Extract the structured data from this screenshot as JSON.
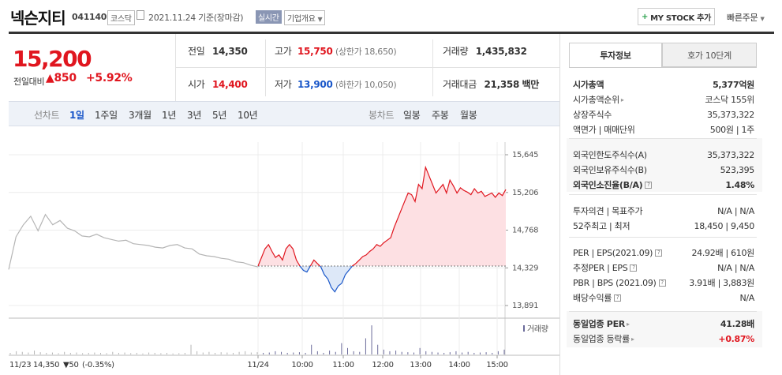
{
  "header": {
    "name": "넥슨지티",
    "code": "041140",
    "market": "코스닥",
    "date_basis": "2021.11.24 기준(장마감)",
    "live_label": "실시간",
    "company_overview": "기업개요",
    "mystock_label": "MY STOCK 추가",
    "quick_order": "빠른주문"
  },
  "quote": {
    "price": "15,200",
    "change_label": "전일대비",
    "change": "850",
    "change_pct": "+5.92%",
    "prev_label": "전일",
    "prev": "14,350",
    "high_label": "고가",
    "high": "15,750",
    "upper_limit": "(상한가 18,650)",
    "volume_label": "거래량",
    "volume": "1,435,832",
    "open_label": "시가",
    "open": "14,400",
    "low_label": "저가",
    "low": "13,900",
    "lower_limit": "(하한가 10,050)",
    "amount_label": "거래대금",
    "amount": "21,358",
    "amount_unit": "백만"
  },
  "period_tabs": {
    "line_label": "선차트",
    "line": [
      "1일",
      "1주일",
      "3개월",
      "1년",
      "3년",
      "5년",
      "10년"
    ],
    "selected": "1일",
    "candle_label": "봉차트",
    "candle": [
      "일봉",
      "주봉",
      "월봉"
    ]
  },
  "chart_data": {
    "type": "line",
    "y_ticks": [
      "15,645",
      "15,206",
      "14,768",
      "14,329",
      "13,891"
    ],
    "ylim": [
      13891,
      15645
    ],
    "x_ticks": [
      "11/24",
      "10:00",
      "11:00",
      "12:00",
      "13:00",
      "14:00",
      "15:00"
    ],
    "volume_label": "거래량",
    "prev_close": 14350,
    "prev_day_label": "11/23",
    "prev_day_close": "14,350",
    "prev_day_change": "▼50",
    "prev_day_pct": "(-0.35%)",
    "prev_day_series": [
      14310,
      14690,
      14830,
      14930,
      14760,
      14950,
      14830,
      14880,
      14790,
      14760,
      14700,
      14690,
      14720,
      14680,
      14660,
      14640,
      14650,
      14610,
      14600,
      14590,
      14570,
      14560,
      14590,
      14600,
      14560,
      14550,
      14490,
      14470,
      14460,
      14440,
      14430,
      14400,
      14390,
      14360,
      14340
    ],
    "today_series": [
      14350,
      14450,
      14550,
      14600,
      14520,
      14450,
      14480,
      14420,
      14550,
      14600,
      14550,
      14420,
      14350,
      14300,
      14280,
      14350,
      14420,
      14380,
      14340,
      14250,
      14200,
      14100,
      14050,
      14120,
      14150,
      14250,
      14300,
      14350,
      14380,
      14420,
      14460,
      14480,
      14520,
      14550,
      14600,
      14580,
      14620,
      14650,
      14680,
      14800,
      14900,
      15000,
      15100,
      15200,
      15180,
      15100,
      15300,
      15250,
      15500,
      15400,
      15300,
      15200,
      15250,
      15300,
      15200,
      15350,
      15280,
      15200,
      15260,
      15230,
      15210,
      15180,
      15250,
      15200,
      15220,
      15160,
      15180,
      15200,
      15150,
      15200,
      15170,
      15240
    ],
    "volume_series": [
      0.05,
      0.1,
      0.08,
      0.06,
      0.12,
      0.07,
      0.05,
      0.06,
      0.04,
      0.08,
      0.05,
      0.06,
      0.04,
      0.05,
      0.06,
      0.05,
      0.04,
      0.08,
      0.05,
      0.06,
      0.04,
      0.05,
      0.03,
      0.06,
      0.05,
      0.04,
      0.05,
      0.03,
      0.04,
      0.05,
      0.3,
      0.1,
      0.06,
      0.08,
      0.05,
      0.07,
      0.06,
      0.05,
      0.08,
      0.1,
      0.06,
      0.07,
      0.05,
      0.06,
      0.1,
      0.08,
      0.05,
      0.06,
      0.07,
      0.05,
      0.3,
      0.1,
      0.05,
      0.12,
      0.08,
      0.35,
      0.2,
      0.1,
      0.08,
      0.5,
      0.9,
      0.3,
      0.15,
      0.1,
      0.12,
      0.08,
      0.07,
      0.06,
      0.2,
      0.1,
      0.08,
      0.06,
      0.05,
      0.07,
      0.1,
      0.06,
      0.08,
      0.05,
      0.06,
      0.07,
      0.05,
      0.1,
      0.15
    ]
  },
  "panel": {
    "tab_invest": "투자정보",
    "tab_quote": "호가 10단계",
    "rows1": [
      {
        "label": "시가총액",
        "value": "5,377억원",
        "bold": true
      },
      {
        "label": "시가총액순위",
        "value": "코스닥 155위",
        "arrow": true
      },
      {
        "label": "상장주식수",
        "value": "35,373,322"
      },
      {
        "label": "액면가 | 매매단위",
        "value": "500원 | 1주"
      }
    ],
    "rows2": [
      {
        "label": "외국인한도주식수(A)",
        "value": "35,373,322"
      },
      {
        "label": "외국인보유주식수(B)",
        "value": "523,395"
      },
      {
        "label": "외국인소진율(B/A)",
        "value": "1.48%",
        "bold": true,
        "info": true
      }
    ],
    "rows3": [
      {
        "label": "투자의견 | 목표주가",
        "value": "N/A | N/A"
      },
      {
        "label": "52주최고 | 최저",
        "value": "18,450 | 9,450"
      }
    ],
    "rows4": [
      {
        "label": "PER | EPS(2021.09)",
        "value": "24.92배 | 610원",
        "info": true
      },
      {
        "label": "추정PER | EPS",
        "value": "N/A | N/A",
        "info": true
      },
      {
        "label": "PBR | BPS (2021.09)",
        "value": "3.91배 | 3,883원",
        "info": true
      },
      {
        "label": "배당수익률",
        "value": "N/A",
        "info": true
      }
    ],
    "rows5": [
      {
        "label": "동일업종 PER",
        "value": "41.28배",
        "bold": true,
        "arrow": true
      },
      {
        "label": "동일업종 등락률",
        "value": "+0.87%",
        "red": true,
        "arrow": true
      }
    ]
  },
  "colors": {
    "up": "#e0161f",
    "down": "#1a57c9",
    "prev_line": "#b5b5b5",
    "up_fill": "#fde0e3",
    "down_fill": "#dde8f8"
  }
}
